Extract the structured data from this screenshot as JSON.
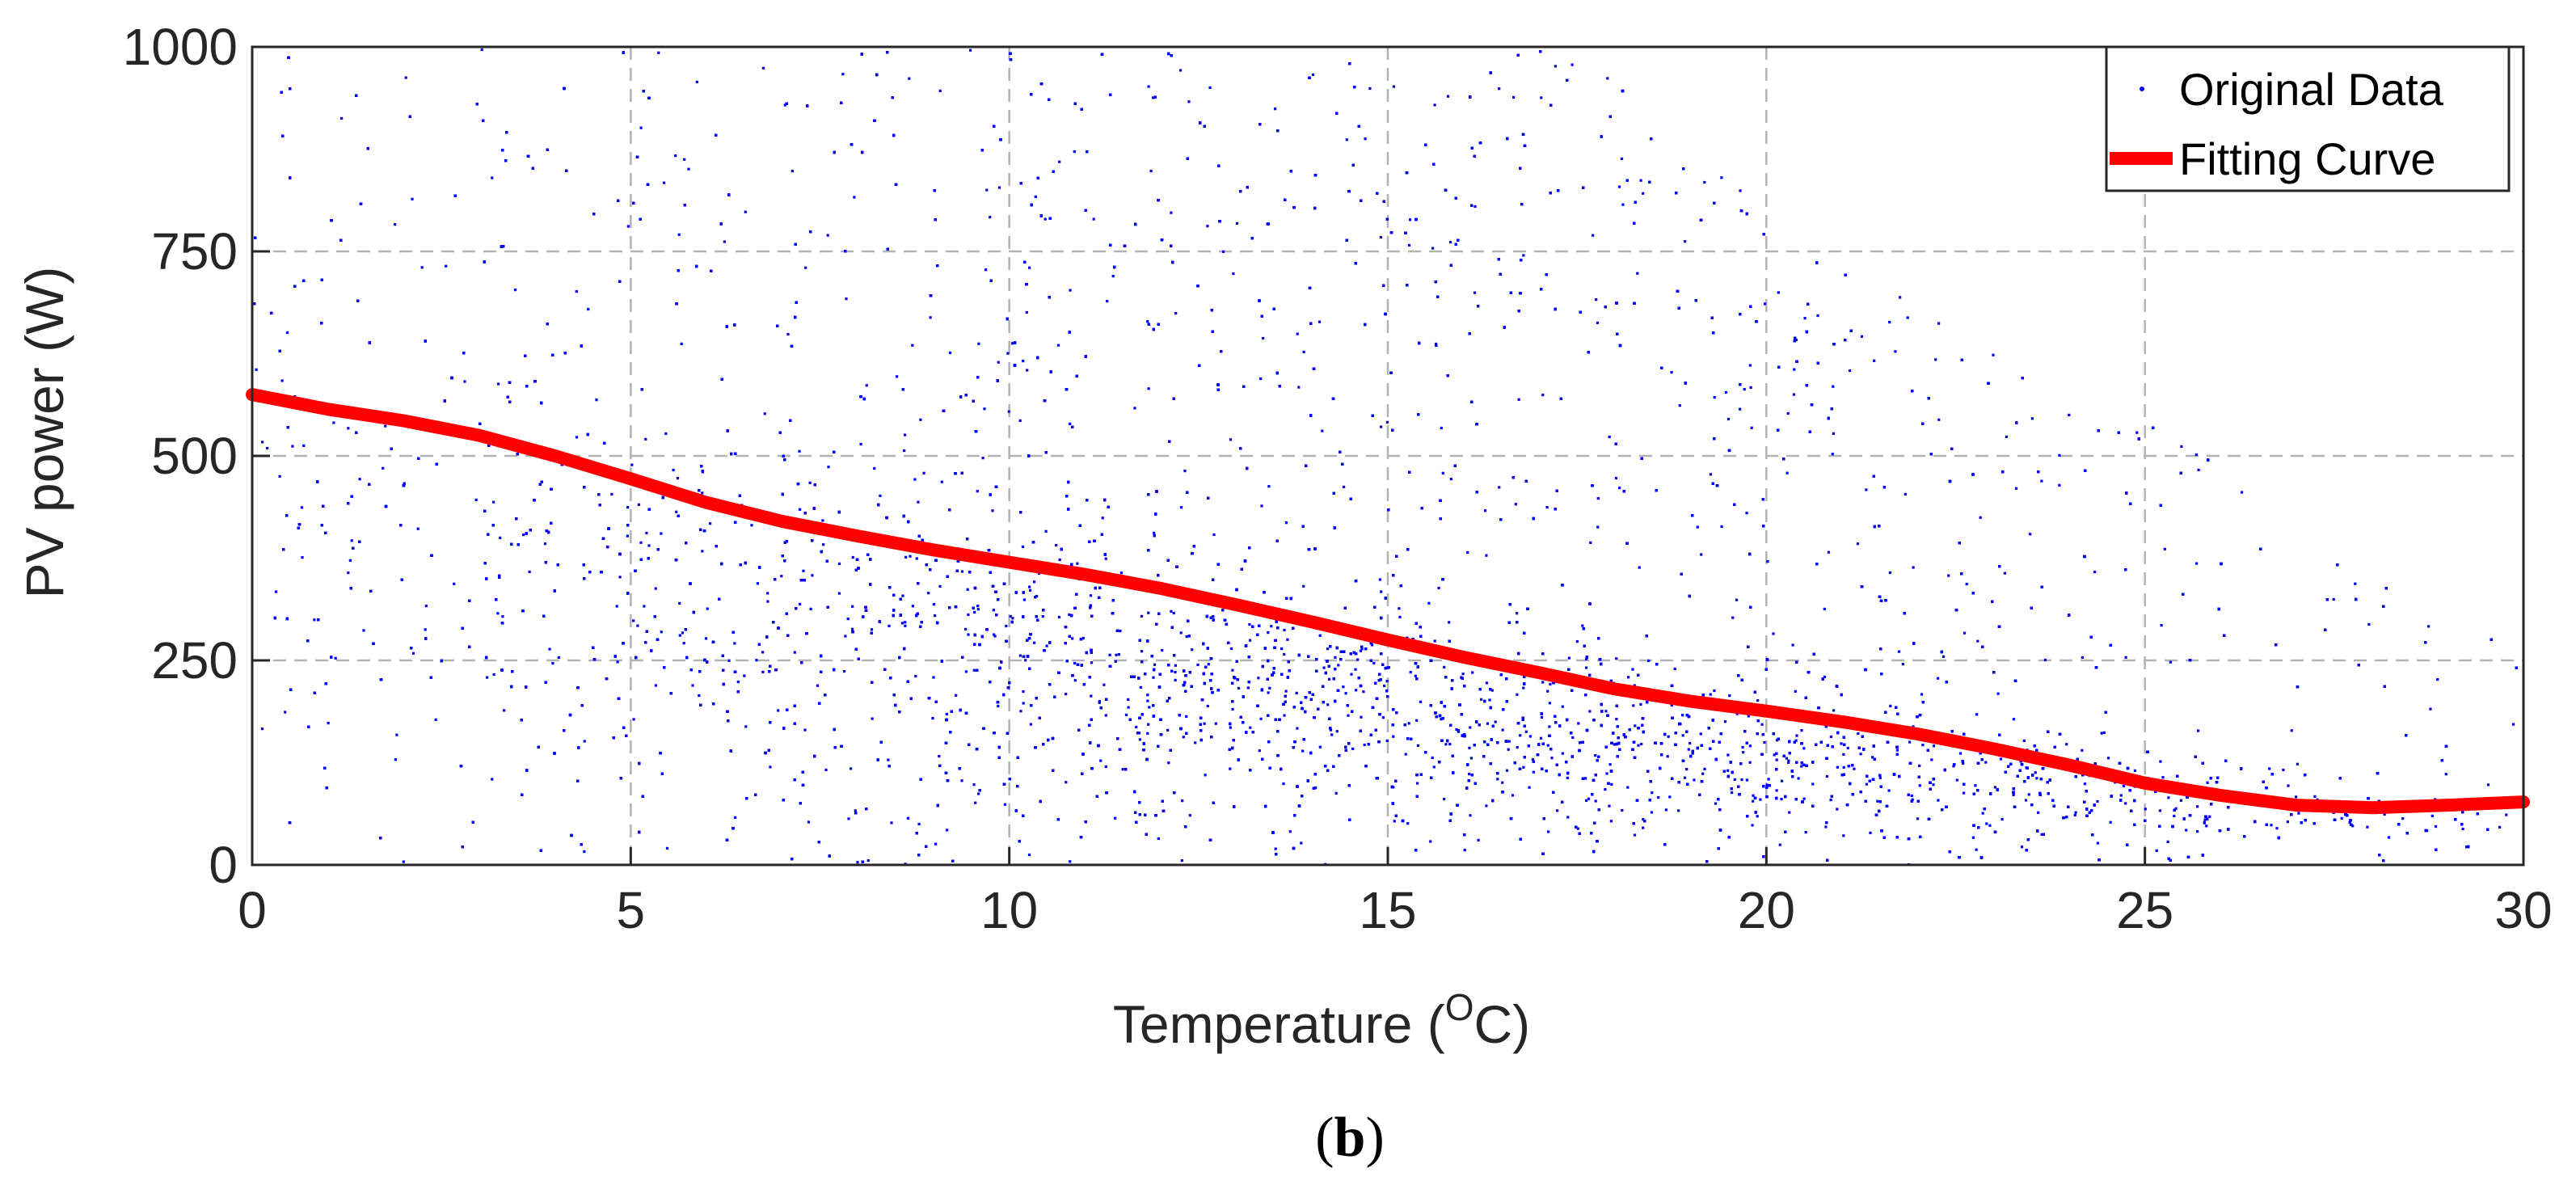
{
  "caption": {
    "open": "(",
    "letter": "b",
    "close": ")"
  },
  "chart_data": {
    "type": "scatter",
    "title": "",
    "xlabel": "Temperature (",
    "xlabel_sup": "O",
    "xlabel_end": "C)",
    "ylabel": "PV power (W)",
    "xlim": [
      0,
      30
    ],
    "ylim": [
      0,
      1000
    ],
    "xticks": [
      0,
      5,
      10,
      15,
      20,
      25,
      30
    ],
    "yticks": [
      0,
      250,
      500,
      750,
      1000
    ],
    "xtick_labels": [
      "0",
      "5",
      "10",
      "15",
      "20",
      "25",
      "30"
    ],
    "ytick_labels": [
      "0",
      "250",
      "500",
      "750",
      "1000"
    ],
    "grid": true,
    "legend_position": "top-right",
    "legend": [
      "Original Data",
      "Fitting Curve"
    ],
    "colors": {
      "scatter": "#0000ff",
      "curve": "#ff0000",
      "grid": "#b3b3b3",
      "axes": "#262626"
    },
    "series": [
      {
        "name": "Original Data",
        "kind": "scatter",
        "note": "dense cloud of measured points (thousands of samples)",
        "density_profile": {
          "x": [
            0,
            2.5,
            5,
            7.5,
            10,
            12.5,
            15,
            17.5,
            20,
            22.5,
            25,
            27.5,
            30
          ],
          "center_y": [
            550,
            520,
            460,
            420,
            360,
            300,
            250,
            200,
            180,
            150,
            110,
            80,
            70
          ],
          "max_y": [
            1000,
            1000,
            1000,
            1000,
            1000,
            1000,
            1000,
            1000,
            800,
            650,
            550,
            400,
            250
          ],
          "relative_density": [
            0.25,
            0.35,
            0.55,
            0.65,
            0.9,
            1.0,
            1.0,
            0.95,
            0.85,
            0.7,
            0.45,
            0.2,
            0.08
          ]
        }
      },
      {
        "name": "Fitting Curve",
        "kind": "line",
        "x": [
          0,
          1,
          2,
          3,
          4,
          5,
          6,
          7,
          8,
          9,
          10,
          11,
          12,
          13,
          14,
          15,
          16,
          17,
          18,
          19,
          20,
          21,
          22,
          23,
          24,
          25,
          26,
          27,
          28,
          29,
          30
        ],
        "y": [
          575,
          557,
          543,
          525,
          500,
          472,
          443,
          420,
          402,
          385,
          370,
          355,
          338,
          318,
          297,
          275,
          254,
          235,
          215,
          200,
          188,
          175,
          160,
          142,
          122,
          100,
          85,
          73,
          70,
          73,
          77
        ]
      }
    ]
  }
}
